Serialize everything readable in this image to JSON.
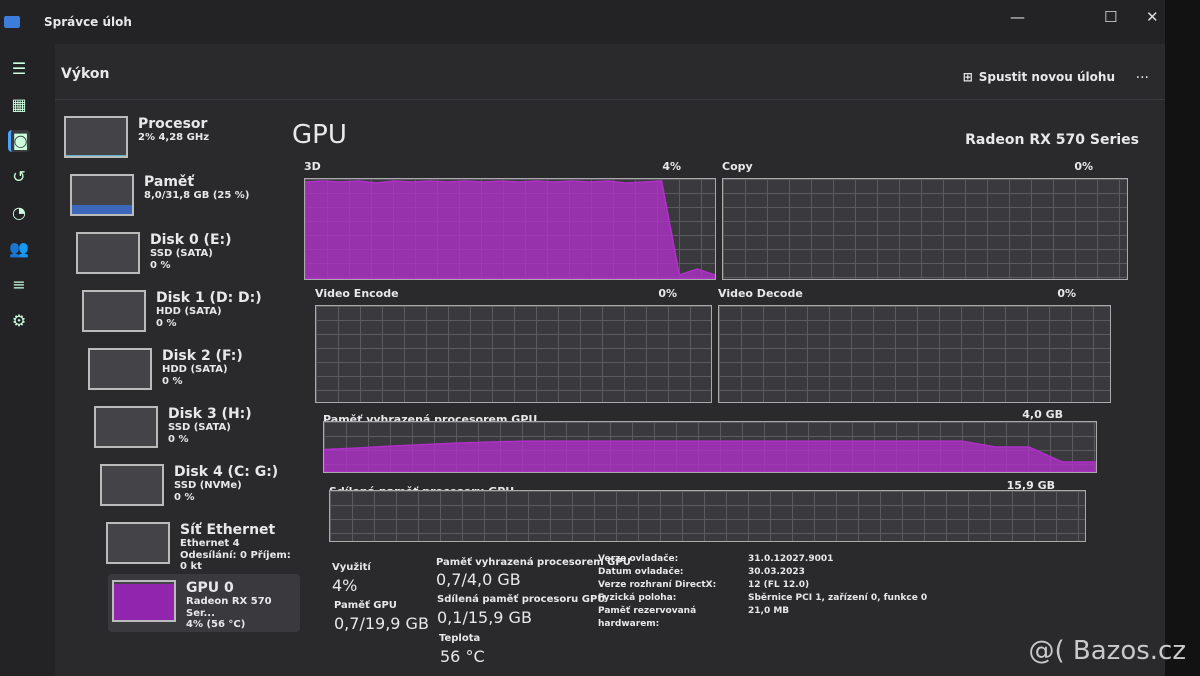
{
  "window": {
    "title": "Správce úloh",
    "minimize": "—",
    "maximize": "☐",
    "close": "✕"
  },
  "header": {
    "title": "Výkon",
    "run_task": "Spustit novou úlohu",
    "more": "..."
  },
  "nav": [
    "menu-icon",
    "processes-icon",
    "performance-icon",
    "history-icon",
    "startup-icon",
    "users-icon",
    "details-icon",
    "services-icon"
  ],
  "sidebar": [
    {
      "name": "Procesor",
      "sub": "2% 4,28 GHz",
      "color": "#5fc8e8",
      "level": 2
    },
    {
      "name": "Paměť",
      "sub": "8,0/31,8 GB (25 %)",
      "color": "#3a6fd0",
      "level": 25
    },
    {
      "name": "Disk 0 (E:)",
      "sub": "SSD (SATA)",
      "sub2": "0 %",
      "color": "#8dd43a",
      "level": 0
    },
    {
      "name": "Disk 1 (D: D:)",
      "sub": "HDD (SATA)",
      "sub2": "0 %",
      "color": "#8dd43a",
      "level": 0
    },
    {
      "name": "Disk 2 (F:)",
      "sub": "HDD (SATA)",
      "sub2": "0 %",
      "color": "#8dd43a",
      "level": 0
    },
    {
      "name": "Disk 3 (H:)",
      "sub": "SSD (SATA)",
      "sub2": "0 %",
      "color": "#8dd43a",
      "level": 0
    },
    {
      "name": "Disk 4 (C: G:)",
      "sub": "SSD (NVMe)",
      "sub2": "0 %",
      "color": "#8dd43a",
      "level": 0
    },
    {
      "name": "Síť Ethernet",
      "sub": "Ethernet 4",
      "sub2": "Odesílání: 0 Příjem: 0 kt",
      "color": "#e07aa0",
      "level": 0
    },
    {
      "name": "GPU 0",
      "sub": "Radeon RX 570 Ser...",
      "sub2": "4% (56 °C)",
      "color": "#a020c0",
      "level": 95
    }
  ],
  "gpu": {
    "title": "GPU",
    "name": "Radeon RX 570 Series",
    "accent": "#b030c8",
    "engines": [
      {
        "label": "3D",
        "pct": "4%",
        "values": [
          97,
          98,
          97,
          98,
          96,
          98,
          97,
          98,
          97,
          98,
          97,
          98,
          97,
          98,
          97,
          98,
          97,
          98,
          96,
          97,
          98,
          4,
          10,
          4
        ]
      },
      {
        "label": "Copy",
        "pct": "0%",
        "values": []
      },
      {
        "label": "Video Encode",
        "pct": "0%",
        "values": []
      },
      {
        "label": "Video Decode",
        "pct": "0%",
        "values": []
      }
    ],
    "dedicated": {
      "label": "Paměť vyhrazená procesorem GPU",
      "max": "4,0 GB",
      "values": [
        45,
        48,
        52,
        55,
        58,
        60,
        62,
        62,
        62,
        62,
        62,
        62,
        62,
        62,
        62,
        62,
        62,
        62,
        62,
        62,
        50,
        50,
        20,
        20
      ]
    },
    "shared": {
      "label": "Sdílená paměť procesoru GPU",
      "max": "15,9 GB",
      "values": []
    },
    "stats": {
      "util_label": "Využití",
      "util": "4%",
      "mem_label": "Paměť GPU",
      "mem": "0,7/19,9 GB",
      "ded_label": "Paměť vyhrazená procesorem GPU",
      "ded": "0,7/4,0 GB",
      "sh_label": "Sdílená paměť procesoru GPU",
      "sh": "0,1/15,9 GB",
      "temp_label": "Teplota",
      "temp": "56 °C"
    },
    "info": [
      [
        "Verze ovladače:",
        "31.0.12027.9001"
      ],
      [
        "Datum ovladače:",
        "30.03.2023"
      ],
      [
        "Verze rozhraní DirectX:",
        "12 (FL 12.0)"
      ],
      [
        "Fyzická poloha:",
        "Sběrnice PCI 1, zařízení 0, funkce 0"
      ],
      [
        "Paměť rezervovaná hardwarem:",
        "21,0 MB"
      ]
    ]
  },
  "watermark": "@( Bazos.cz"
}
